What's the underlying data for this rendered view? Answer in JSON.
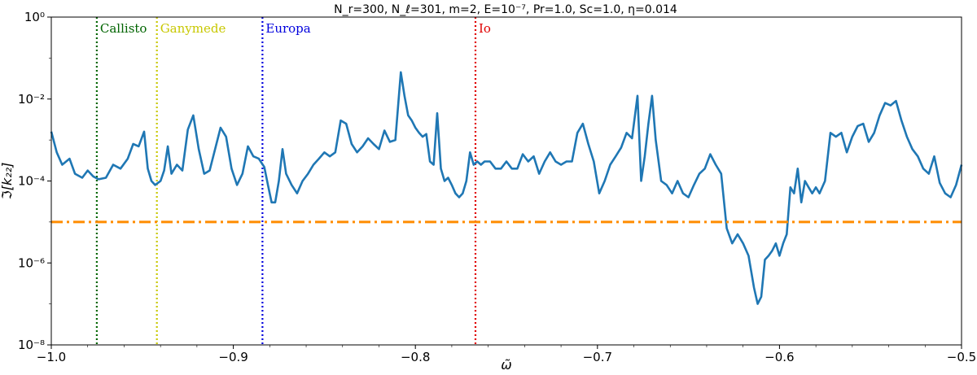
{
  "chart_data": {
    "type": "line",
    "title": "N_r=300,  N_ℓ=301,  m=2,  E=10⁻⁷,  Pr=1.0,  Sc=1.0,  η=0.014",
    "xlabel": "ω̃",
    "ylabel": "ℑ[k₂₂]",
    "xlim": [
      -1.0,
      -0.5
    ],
    "ylim": [
      1e-08,
      1
    ],
    "yscale": "log",
    "grid": false,
    "x_ticks": [
      "−1.0",
      "−0.9",
      "−0.8",
      "−0.7",
      "−0.6",
      "−0.5"
    ],
    "y_ticks": [
      "10⁻⁸",
      "10⁻⁶",
      "10⁻⁴",
      "10⁻²",
      "10⁰"
    ],
    "series": [
      {
        "color": "#1f77b4",
        "x": [
          -1.0,
          -0.997,
          -0.994,
          -0.99,
          -0.987,
          -0.983,
          -0.98,
          -0.977,
          -0.974,
          -0.97,
          -0.966,
          -0.962,
          -0.958,
          -0.955,
          -0.952,
          -0.949,
          -0.947,
          -0.945,
          -0.943,
          -0.94,
          -0.938,
          -0.936,
          -0.934,
          -0.931,
          -0.928,
          -0.925,
          -0.922,
          -0.919,
          -0.916,
          -0.913,
          -0.91,
          -0.907,
          -0.904,
          -0.901,
          -0.898,
          -0.895,
          -0.892,
          -0.889,
          -0.886,
          -0.883,
          -0.881,
          -0.879,
          -0.877,
          -0.875,
          -0.873,
          -0.871,
          -0.868,
          -0.865,
          -0.862,
          -0.859,
          -0.856,
          -0.853,
          -0.85,
          -0.847,
          -0.844,
          -0.841,
          -0.838,
          -0.835,
          -0.832,
          -0.829,
          -0.826,
          -0.823,
          -0.82,
          -0.817,
          -0.814,
          -0.811,
          -0.808,
          -0.806,
          -0.804,
          -0.802,
          -0.8,
          -0.798,
          -0.796,
          -0.794,
          -0.792,
          -0.79,
          -0.788,
          -0.786,
          -0.784,
          -0.782,
          -0.78,
          -0.778,
          -0.776,
          -0.774,
          -0.772,
          -0.77,
          -0.768,
          -0.766,
          -0.764,
          -0.762,
          -0.759,
          -0.756,
          -0.753,
          -0.75,
          -0.747,
          -0.744,
          -0.741,
          -0.738,
          -0.735,
          -0.732,
          -0.729,
          -0.726,
          -0.723,
          -0.72,
          -0.717,
          -0.714,
          -0.711,
          -0.708,
          -0.705,
          -0.702,
          -0.699,
          -0.696,
          -0.693,
          -0.69,
          -0.687,
          -0.684,
          -0.681,
          -0.678,
          -0.676,
          -0.674,
          -0.672,
          -0.67,
          -0.668,
          -0.665,
          -0.662,
          -0.659,
          -0.656,
          -0.653,
          -0.65,
          -0.647,
          -0.644,
          -0.641,
          -0.638,
          -0.635,
          -0.632,
          -0.629,
          -0.626,
          -0.623,
          -0.62,
          -0.617,
          -0.614,
          -0.612,
          -0.61,
          -0.608,
          -0.606,
          -0.604,
          -0.602,
          -0.6,
          -0.598,
          -0.596,
          -0.594,
          -0.592,
          -0.59,
          -0.588,
          -0.586,
          -0.584,
          -0.582,
          -0.58,
          -0.578,
          -0.575,
          -0.572,
          -0.569,
          -0.566,
          -0.563,
          -0.56,
          -0.557,
          -0.554,
          -0.551,
          -0.548,
          -0.545,
          -0.542,
          -0.539,
          -0.536,
          -0.533,
          -0.53,
          -0.527,
          -0.524,
          -0.521,
          -0.518,
          -0.515,
          -0.512,
          -0.509,
          -0.506,
          -0.503,
          -0.5
        ],
        "y": [
          0.0016,
          0.0005,
          0.00025,
          0.00035,
          0.00015,
          0.00012,
          0.00018,
          0.00013,
          0.00011,
          0.00012,
          0.00025,
          0.0002,
          0.00035,
          0.0008,
          0.0007,
          0.0016,
          0.0002,
          0.0001,
          8e-05,
          0.0001,
          0.00018,
          0.0007,
          0.00015,
          0.00025,
          0.00018,
          0.0018,
          0.004,
          0.0006,
          0.00015,
          0.00018,
          0.0006,
          0.002,
          0.0012,
          0.0002,
          8e-05,
          0.00015,
          0.0007,
          0.0004,
          0.00035,
          0.00022,
          8e-05,
          3e-05,
          3e-05,
          0.0001,
          0.0006,
          0.00015,
          8e-05,
          5e-05,
          0.0001,
          0.00015,
          0.00025,
          0.00035,
          0.0005,
          0.0004,
          0.0005,
          0.003,
          0.0025,
          0.0008,
          0.0005,
          0.0007,
          0.0011,
          0.0008,
          0.0006,
          0.0017,
          0.0009,
          0.001,
          0.045,
          0.012,
          0.004,
          0.003,
          0.002,
          0.0015,
          0.0012,
          0.0014,
          0.0003,
          0.00025,
          0.0045,
          0.0002,
          0.0001,
          0.00012,
          8e-05,
          5e-05,
          4e-05,
          5e-05,
          0.0001,
          0.0005,
          0.00025,
          0.0003,
          0.00025,
          0.0003,
          0.0003,
          0.0002,
          0.0002,
          0.0003,
          0.0002,
          0.0002,
          0.00045,
          0.0003,
          0.0004,
          0.00015,
          0.0003,
          0.0005,
          0.0003,
          0.00025,
          0.0003,
          0.0003,
          0.0015,
          0.0025,
          0.0008,
          0.0003,
          5e-05,
          0.0001,
          0.00025,
          0.0004,
          0.00065,
          0.0015,
          0.0011,
          0.012,
          0.0001,
          0.0004,
          0.0025,
          0.012,
          0.001,
          0.0001,
          8e-05,
          5e-05,
          0.0001,
          5e-05,
          4e-05,
          8e-05,
          0.00015,
          0.0002,
          0.00045,
          0.00025,
          0.00015,
          7e-06,
          3e-06,
          5e-06,
          3e-06,
          1.5e-06,
          2.5e-07,
          1e-07,
          1.5e-07,
          1.2e-06,
          1.5e-06,
          2e-06,
          3e-06,
          1.5e-06,
          3e-06,
          5e-06,
          7e-05,
          5e-05,
          0.0002,
          3e-05,
          0.0001,
          7e-05,
          5e-05,
          7e-05,
          5e-05,
          0.0001,
          0.0015,
          0.0012,
          0.0015,
          0.0005,
          0.0012,
          0.0022,
          0.0025,
          0.0009,
          0.0015,
          0.004,
          0.008,
          0.007,
          0.009,
          0.003,
          0.0012,
          0.0006,
          0.0004,
          0.0002,
          0.00015,
          0.0004,
          9e-05,
          5e-05,
          4e-05,
          8e-05,
          0.00025
        ]
      },
      {
        "color": "#ff8c00",
        "x": [
          -1.0,
          -0.5
        ],
        "y": [
          1e-05,
          1e-05
        ]
      }
    ],
    "vlines": [
      {
        "x": -0.975,
        "label": "Callisto",
        "color": "#006400"
      },
      {
        "x": -0.942,
        "label": "Ganymede",
        "color": "#c8c800"
      },
      {
        "x": -0.884,
        "label": "Europa",
        "color": "#0000dd"
      },
      {
        "x": -0.767,
        "label": "Io",
        "color": "#e00000"
      }
    ]
  }
}
